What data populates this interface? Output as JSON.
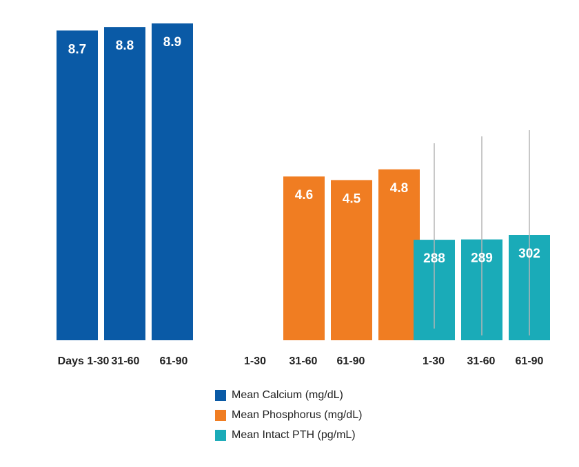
{
  "chart_data": {
    "type": "bar",
    "groups": [
      {
        "series": "Mean Calcium (mg/dL)",
        "color": "#0a5aa6",
        "categories": [
          "Days 1-30",
          "31-60",
          "61-90"
        ],
        "values": [
          8.7,
          8.8,
          8.9
        ],
        "ylim": [
          0,
          8.9
        ]
      },
      {
        "series": "Mean Phosphorus (mg/dL)",
        "color": "#f07d22",
        "categories": [
          "1-30",
          "31-60",
          "61-90"
        ],
        "values": [
          4.6,
          4.5,
          4.8
        ],
        "ylim": [
          0,
          8.9
        ]
      },
      {
        "series": "Mean Intact PTH (pg/mL)",
        "color": "#1aabb8",
        "categories": [
          "1-30",
          "31-60",
          "61-90"
        ],
        "values": [
          288,
          289,
          302
        ],
        "ylim": [
          0,
          600
        ],
        "error_bars": true
      }
    ],
    "legend": {
      "placement": "bottom",
      "entries": [
        {
          "label": "Mean Calcium (mg/dL)",
          "color": "#0a5aa6"
        },
        {
          "label": "Mean Phosphorus (mg/dL)",
          "color": "#f07d22"
        },
        {
          "label": "Mean Intact PTH (pg/mL)",
          "color": "#1aabb8"
        }
      ]
    },
    "grid": false
  }
}
